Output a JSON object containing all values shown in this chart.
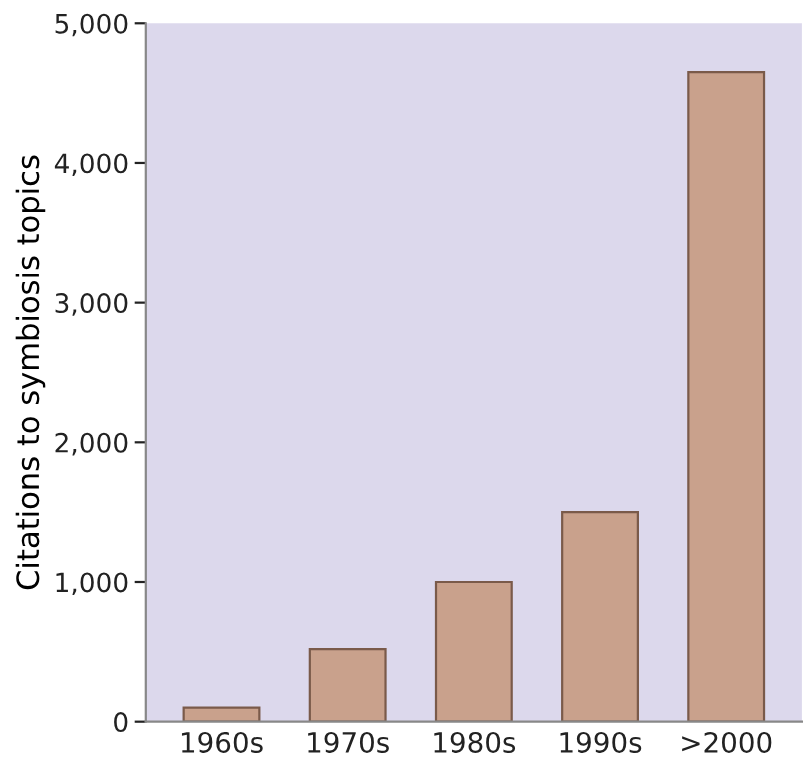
{
  "chart_data": {
    "type": "bar",
    "ylabel": "Citations to symbiosis topics",
    "categories": [
      "1960s",
      "1970s",
      "1980s",
      "1990s",
      ">2000"
    ],
    "values": [
      100,
      520,
      1000,
      1500,
      4650
    ],
    "color": "#c9a18c",
    "ylim": [
      0,
      5000
    ],
    "yticks": [
      0,
      {
        "value": 1000,
        "label": "1,000"
      },
      {
        "value": 2000,
        "label": "2,000"
      },
      {
        "value": 3000,
        "label": "3,000"
      },
      {
        "value": 4000,
        "label": "4,000"
      },
      {
        "value": 5000,
        "label": "5,000"
      }
    ],
    "grid": false
  }
}
